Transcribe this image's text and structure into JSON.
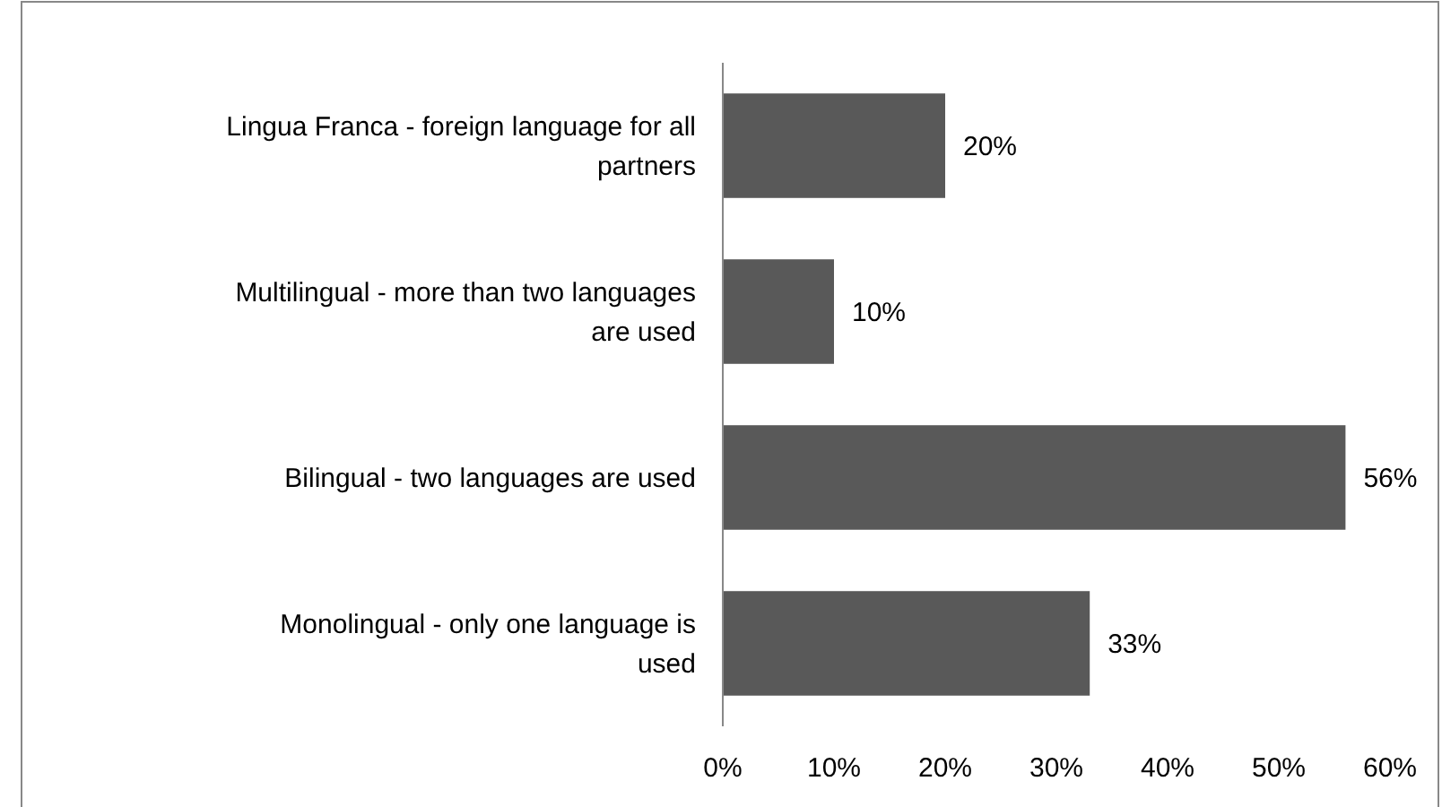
{
  "chart_data": {
    "type": "bar",
    "orientation": "horizontal",
    "categories": [
      "Lingua Franca - foreign language for all partners",
      "Multilingual - more than two languages are used",
      "Bilingual - two languages are used",
      "Monolingual - only one language is used"
    ],
    "values": [
      20,
      10,
      56,
      33
    ],
    "color": "#595959",
    "value_labels": [
      "20%",
      "10%",
      "56%",
      "33%"
    ],
    "xlim": [
      0,
      60
    ],
    "xticks": [
      {
        "value": 0,
        "label": "0%"
      },
      {
        "value": 10,
        "label": "10%"
      },
      {
        "value": 20,
        "label": "20%"
      },
      {
        "value": 30,
        "label": "30%"
      },
      {
        "value": 40,
        "label": "40%"
      },
      {
        "value": 50,
        "label": "50%"
      },
      {
        "value": 60,
        "label": "60%"
      }
    ],
    "grid": false
  }
}
